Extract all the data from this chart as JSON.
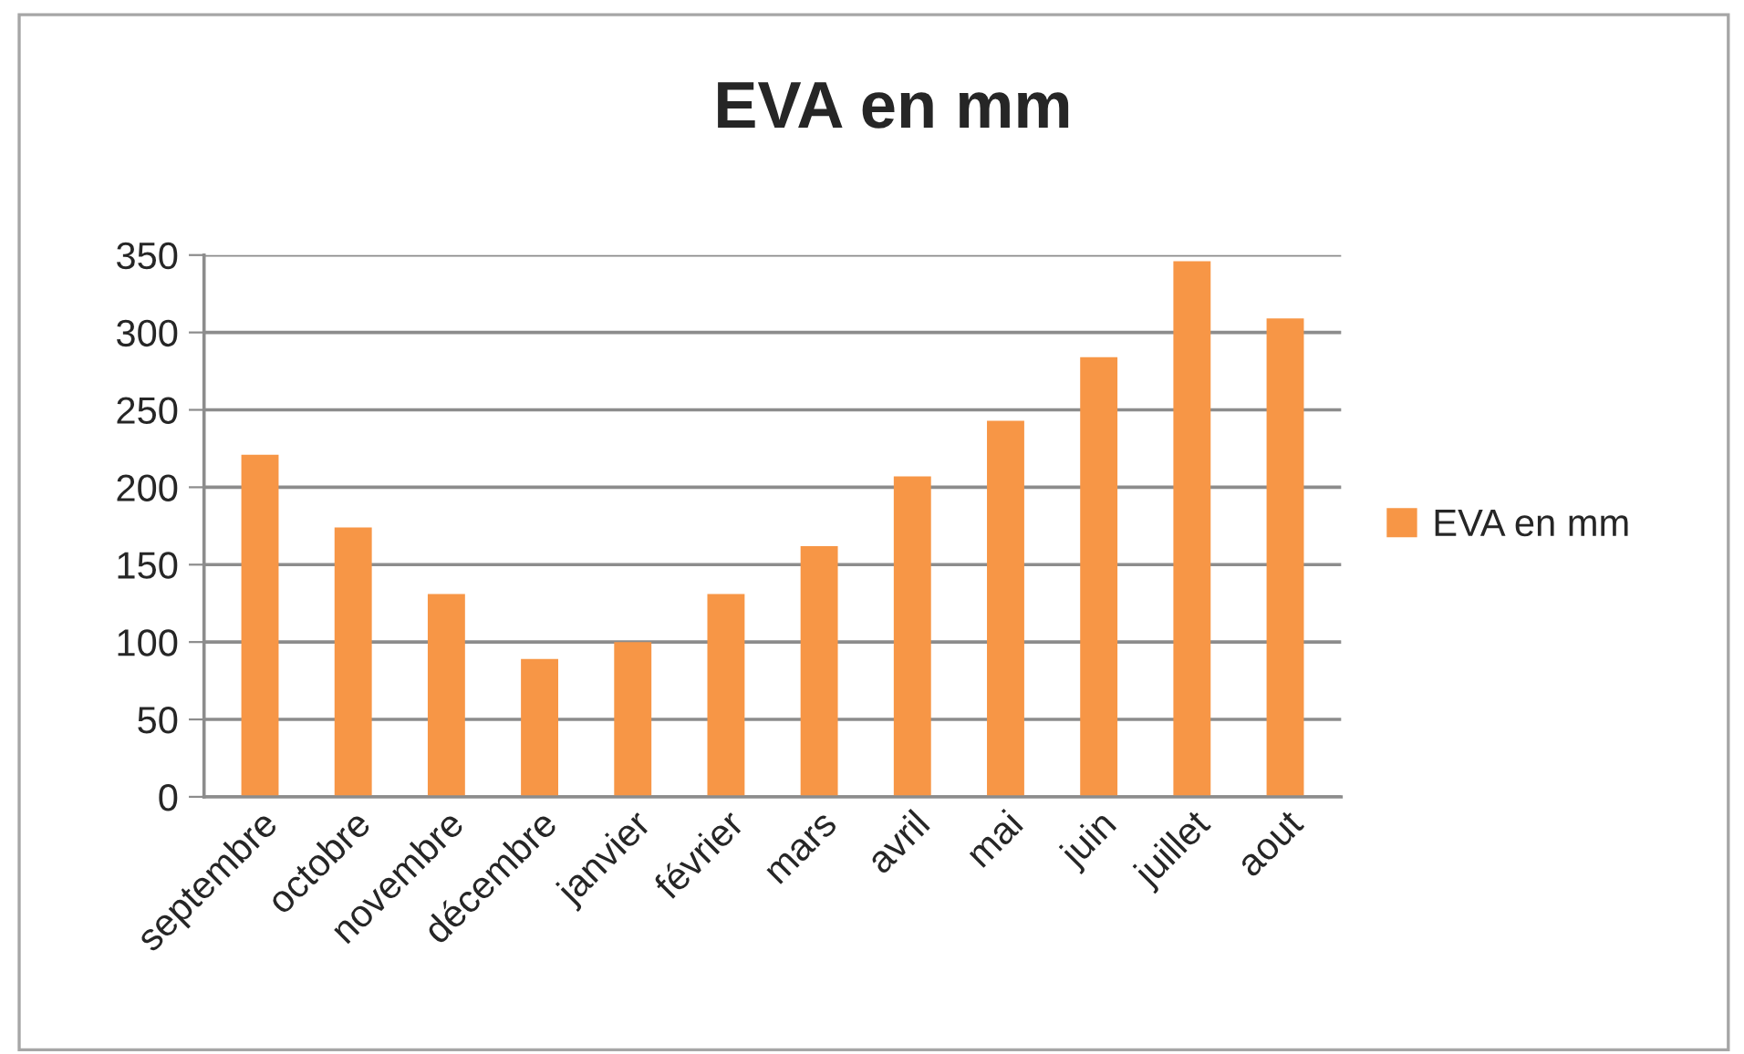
{
  "chart_data": {
    "type": "bar",
    "title": "EVA en mm",
    "categories": [
      "septembre",
      "octobre",
      "novembre",
      "décembre",
      "janvier",
      "février",
      "mars",
      "avril",
      "mai",
      "juin",
      "juillet",
      "aout"
    ],
    "series": [
      {
        "name": "EVA en mm",
        "color": "#f79646",
        "values": [
          221,
          174,
          131,
          89,
          100,
          131,
          162,
          207,
          243,
          284,
          346,
          309
        ]
      }
    ],
    "ylim": [
      0,
      350
    ],
    "yticks": [
      0,
      50,
      100,
      150,
      200,
      250,
      300,
      350
    ],
    "grid": "y",
    "legend": "right"
  }
}
